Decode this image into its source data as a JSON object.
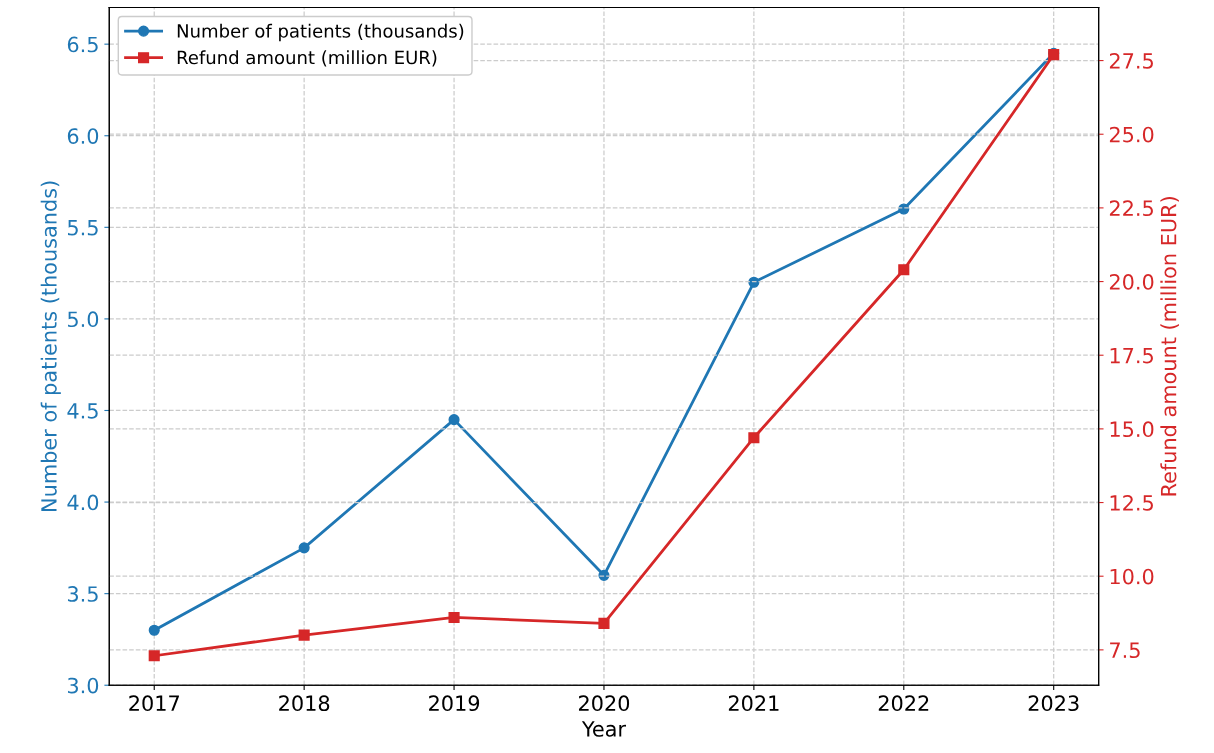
{
  "chart_data": {
    "type": "line",
    "xlabel": "Year",
    "ylabel": "Number of patients (thousands)",
    "y2label": "Refund amount (million EUR)",
    "x": [
      2017,
      2018,
      2019,
      2020,
      2021,
      2022,
      2023
    ],
    "xlim": [
      2016.7,
      2023.3
    ],
    "xticks": [
      2017,
      2018,
      2019,
      2020,
      2021,
      2022,
      2023
    ],
    "ylim": [
      3.0,
      6.7
    ],
    "yticks": [
      {
        "value": 3,
        "label": "3.0"
      },
      3.5,
      {
        "value": 4,
        "label": "4.0"
      },
      4.5,
      {
        "value": 5,
        "label": "5.0"
      },
      5.5,
      {
        "value": 6,
        "label": "6.0"
      },
      6.5
    ],
    "y2lim": [
      6.3,
      29.3
    ],
    "y2ticks": [
      7.5,
      {
        "value": 10,
        "label": "10.0"
      },
      12.5,
      {
        "value": 15,
        "label": "15.0"
      },
      17.5,
      {
        "value": 20,
        "label": "20.0"
      },
      22.5,
      {
        "value": 25,
        "label": "25.0"
      },
      27.5
    ],
    "grid": true,
    "legend": "top left",
    "line_style": "solid",
    "series": [
      {
        "name": "Number of patients (thousands)",
        "color": "#1f77b4",
        "marker": "circle",
        "values": [
          3.3,
          3.75,
          4.45,
          3.6,
          5.2,
          5.6,
          6.45
        ]
      },
      {
        "name": "Refund amount (million EUR)",
        "color": "#d62728",
        "marker": "square",
        "axis": "y2",
        "values": [
          7.3,
          8.0,
          8.6,
          8.4,
          14.7,
          20.4,
          27.7
        ]
      }
    ]
  }
}
